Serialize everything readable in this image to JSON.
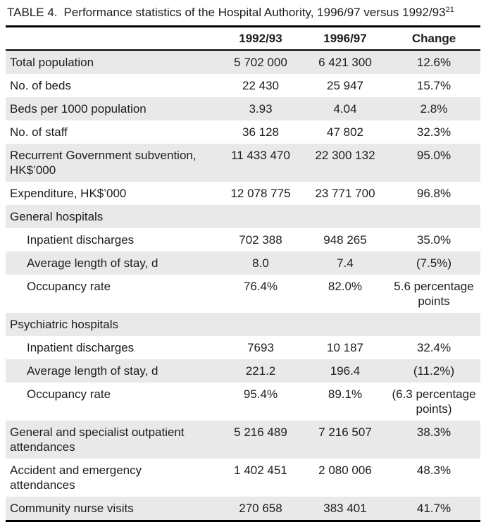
{
  "title": {
    "label": "TABLE 4.",
    "text": "Performance statistics of the Hospital Authority, 1996/97 versus 1992/93",
    "superscript": "21"
  },
  "colors": {
    "row_shading": "#e9e9e9",
    "text": "#1d1d1d",
    "rule": "#000000",
    "background": "#ffffff"
  },
  "table": {
    "columns": [
      "",
      "1992/93",
      "1996/97",
      "Change"
    ],
    "rows": [
      {
        "label": "Total population",
        "v1992_93": "5 702 000",
        "v1996_97": "6 421 300",
        "change": "12.6%",
        "section": false,
        "indent": false
      },
      {
        "label": "No. of beds",
        "v1992_93": "22 430",
        "v1996_97": "25 947",
        "change": "15.7%",
        "section": false,
        "indent": false
      },
      {
        "label": "Beds per 1000 population",
        "v1992_93": "3.93",
        "v1996_97": "4.04",
        "change": "2.8%",
        "section": false,
        "indent": false
      },
      {
        "label": "No. of staff",
        "v1992_93": "36 128",
        "v1996_97": "47 802",
        "change": "32.3%",
        "section": false,
        "indent": false
      },
      {
        "label": "Recurrent Government subvention,\nHK$’000",
        "v1992_93": "11 433 470",
        "v1996_97": "22 300 132",
        "change": "95.0%",
        "section": false,
        "indent": false
      },
      {
        "label": "Expenditure, HK$’000",
        "v1992_93": "12 078 775",
        "v1996_97": "23 771 700",
        "change": "96.8%",
        "section": false,
        "indent": false
      },
      {
        "label": "General hospitals",
        "v1992_93": "",
        "v1996_97": "",
        "change": "",
        "section": true,
        "indent": false
      },
      {
        "label": "Inpatient discharges",
        "v1992_93": "702 388",
        "v1996_97": "948 265",
        "change": "35.0%",
        "section": false,
        "indent": true
      },
      {
        "label": "Average length of stay, d",
        "v1992_93": "8.0",
        "v1996_97": "7.4",
        "change": "(7.5%)",
        "section": false,
        "indent": true
      },
      {
        "label": "Occupancy rate",
        "v1992_93": "76.4%",
        "v1996_97": "82.0%",
        "change": "5.6 percentage\npoints",
        "section": false,
        "indent": true
      },
      {
        "label": "Psychiatric hospitals",
        "v1992_93": "",
        "v1996_97": "",
        "change": "",
        "section": true,
        "indent": false
      },
      {
        "label": "Inpatient discharges",
        "v1992_93": "7693",
        "v1996_97": "10 187",
        "change": "32.4%",
        "section": false,
        "indent": true
      },
      {
        "label": "Average length of stay, d",
        "v1992_93": "221.2",
        "v1996_97": "196.4",
        "change": "(11.2%)",
        "section": false,
        "indent": true
      },
      {
        "label": "Occupancy rate",
        "v1992_93": "95.4%",
        "v1996_97": "89.1%",
        "change": "(6.3 percentage\npoints)",
        "section": false,
        "indent": true
      },
      {
        "label": "General and specialist outpatient\nattendances",
        "v1992_93": "5 216 489",
        "v1996_97": "7 216 507",
        "change": "38.3%",
        "section": false,
        "indent": false
      },
      {
        "label": "Accident and emergency\nattendances",
        "v1992_93": "1 402 451",
        "v1996_97": "2 080 006",
        "change": "48.3%",
        "section": false,
        "indent": false
      },
      {
        "label": "Community nurse visits",
        "v1992_93": "270 658",
        "v1996_97": "383 401",
        "change": "41.7%",
        "section": false,
        "indent": false
      }
    ]
  }
}
